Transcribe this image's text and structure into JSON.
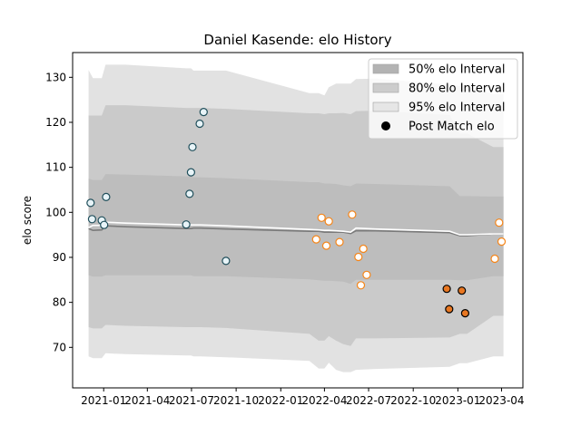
{
  "chart_data": {
    "type": "scatter",
    "title": "Daniel Kasende: elo History",
    "ylabel": "elo score",
    "xlabel": "",
    "xlim": [
      "2020-10-29",
      "2023-05-15"
    ],
    "ylim": [
      61.0,
      135.5
    ],
    "x_ticks": [
      "2021-01",
      "2021-04",
      "2021-07",
      "2021-10",
      "2022-01",
      "2022-04",
      "2022-07",
      "2022-10",
      "2023-01",
      "2023-04"
    ],
    "y_ticks": [
      70,
      80,
      90,
      100,
      110,
      120,
      130
    ],
    "grid": false,
    "legend_position": "upper right",
    "legend": [
      {
        "label": "50% elo Interval",
        "kind": "patch",
        "color": "#b3b3b3"
      },
      {
        "label": "80% elo Interval",
        "kind": "patch",
        "color": "#cccccc"
      },
      {
        "label": "95% elo Interval",
        "kind": "patch",
        "color": "#e6e6e6"
      },
      {
        "label": "Post Match elo",
        "kind": "marker",
        "color": "#000000"
      }
    ],
    "band_dates": [
      "2020-12-01",
      "2020-12-10",
      "2020-12-28",
      "2021-01-05",
      "2021-02-15",
      "2021-06-20",
      "2021-06-30",
      "2021-07-05",
      "2021-07-20",
      "2021-09-10",
      "2022-03-01",
      "2022-03-20",
      "2022-04-01",
      "2022-04-10",
      "2022-04-25",
      "2022-05-10",
      "2022-05-25",
      "2022-06-05",
      "2022-07-15",
      "2022-12-15",
      "2023-01-05",
      "2023-01-20",
      "2023-03-15",
      "2023-04-05"
    ],
    "center": [
      96.4,
      96.0,
      96.1,
      97.0,
      96.8,
      96.4,
      96.4,
      96.5,
      96.5,
      96.3,
      95.8,
      95.8,
      95.6,
      95.6,
      95.6,
      95.6,
      95.3,
      95.9,
      95.9,
      95.5,
      94.8,
      94.8,
      95.2,
      95.2
    ],
    "white_line": [
      96.6,
      97.1,
      97.1,
      97.8,
      97.6,
      97.2,
      97.2,
      97.2,
      97.2,
      97.0,
      96.2,
      96.1,
      96.0,
      96.0,
      95.9,
      95.8,
      95.6,
      96.5,
      96.3,
      95.8,
      95.0,
      95.0,
      95.2,
      95.2
    ],
    "band50_upper": [
      107.5,
      107.2,
      107.2,
      108.5,
      108.4,
      108.0,
      108.0,
      107.8,
      107.8,
      107.6,
      106.7,
      106.7,
      106.4,
      106.4,
      106.3,
      106.0,
      105.8,
      106.4,
      106.3,
      105.8,
      103.6,
      103.6,
      103.5,
      103.5
    ],
    "band50_lower": [
      86.0,
      85.7,
      85.7,
      86.0,
      86.0,
      86.0,
      86.0,
      85.8,
      85.8,
      85.8,
      85.1,
      84.9,
      84.8,
      84.8,
      84.7,
      84.6,
      84.1,
      85.0,
      85.0,
      85.0,
      84.9,
      84.9,
      85.8,
      85.8
    ],
    "band80_upper": [
      121.5,
      121.5,
      121.5,
      123.8,
      123.8,
      123.2,
      123.2,
      123.2,
      123.2,
      123.0,
      122.0,
      122.0,
      121.8,
      122.0,
      122.0,
      122.1,
      121.8,
      122.5,
      122.6,
      121.6,
      117.5,
      117.5,
      114.5,
      114.5
    ],
    "band80_lower": [
      74.5,
      74.2,
      74.2,
      75.0,
      74.8,
      74.5,
      74.5,
      74.5,
      74.5,
      74.3,
      73.0,
      71.5,
      71.5,
      72.5,
      71.5,
      70.7,
      70.3,
      72.0,
      72.0,
      72.2,
      73.0,
      73.0,
      77.0,
      77.0
    ],
    "band95_upper": [
      131.6,
      129.8,
      129.8,
      132.8,
      132.8,
      132.0,
      132.0,
      131.5,
      131.5,
      131.5,
      126.5,
      126.5,
      126.0,
      127.8,
      128.6,
      128.6,
      128.6,
      129.6,
      129.7,
      128.4,
      128.0,
      128.0,
      126.3,
      126.3
    ],
    "band95_lower": [
      68.0,
      67.6,
      67.6,
      68.7,
      68.5,
      68.2,
      68.2,
      68.0,
      68.0,
      67.8,
      67.0,
      65.3,
      65.3,
      66.6,
      65.0,
      64.5,
      64.5,
      65.0,
      65.2,
      65.7,
      66.5,
      66.5,
      68.0,
      68.0
    ],
    "series": [
      {
        "face_color": "#e8f4f8",
        "edge_color": "#1f4e5a",
        "points": [
          {
            "x": "2020-12-05",
            "y": 102.1
          },
          {
            "x": "2020-12-08",
            "y": 98.5
          },
          {
            "x": "2020-12-28",
            "y": 98.2
          },
          {
            "x": "2021-01-02",
            "y": 97.2
          },
          {
            "x": "2021-01-06",
            "y": 103.4
          },
          {
            "x": "2021-06-20",
            "y": 97.3
          },
          {
            "x": "2021-06-27",
            "y": 104.1
          },
          {
            "x": "2021-06-30",
            "y": 108.9
          },
          {
            "x": "2021-07-03",
            "y": 114.5
          },
          {
            "x": "2021-07-18",
            "y": 119.7
          },
          {
            "x": "2021-07-26",
            "y": 122.3
          },
          {
            "x": "2021-09-10",
            "y": 89.2
          }
        ]
      },
      {
        "face_color": "#ffffff",
        "edge_color": "#f58518",
        "points": [
          {
            "x": "2022-03-15",
            "y": 94.0
          },
          {
            "x": "2022-03-26",
            "y": 98.8
          },
          {
            "x": "2022-04-05",
            "y": 92.6
          },
          {
            "x": "2022-04-10",
            "y": 98.0
          },
          {
            "x": "2022-05-02",
            "y": 93.4
          },
          {
            "x": "2022-05-28",
            "y": 99.5
          },
          {
            "x": "2022-06-10",
            "y": 90.1
          },
          {
            "x": "2022-06-15",
            "y": 83.8
          },
          {
            "x": "2022-06-20",
            "y": 91.9
          },
          {
            "x": "2022-06-27",
            "y": 86.1
          },
          {
            "x": "2023-03-18",
            "y": 89.7
          },
          {
            "x": "2023-03-27",
            "y": 97.7
          },
          {
            "x": "2023-04-01",
            "y": 93.5
          }
        ]
      },
      {
        "face_color": "#e87722",
        "edge_color": "#000000",
        "points": [
          {
            "x": "2022-12-09",
            "y": 83.0
          },
          {
            "x": "2022-12-14",
            "y": 78.5
          },
          {
            "x": "2023-01-09",
            "y": 82.6
          },
          {
            "x": "2023-01-16",
            "y": 77.6
          }
        ]
      }
    ]
  }
}
